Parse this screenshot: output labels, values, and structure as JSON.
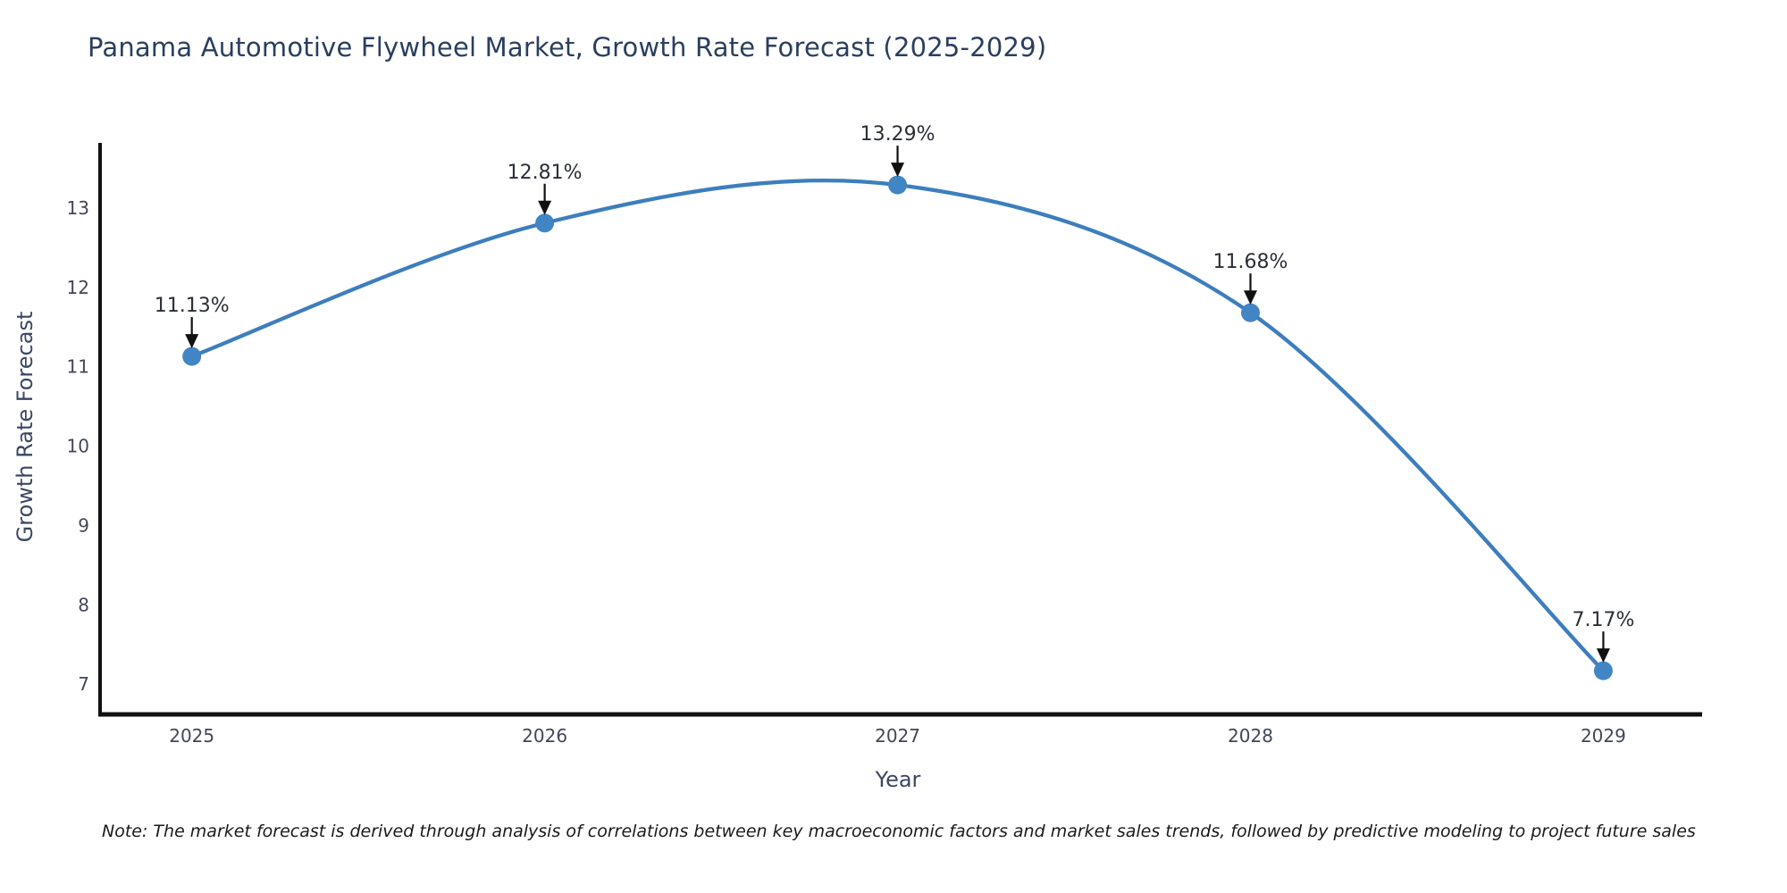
{
  "chart_data": {
    "type": "line",
    "title": "Panama Automotive Flywheel Market, Growth Rate Forecast (2025-2029)",
    "xlabel": "Year",
    "ylabel": "Growth Rate Forecast",
    "x": [
      2025,
      2026,
      2027,
      2028,
      2029
    ],
    "x_tick_labels": [
      "2025",
      "2026",
      "2027",
      "2028",
      "2029"
    ],
    "series": [
      {
        "name": "Growth Rate Forecast",
        "values": [
          11.13,
          12.81,
          13.29,
          11.68,
          7.17
        ],
        "point_labels": [
          "11.13%",
          "12.81%",
          "13.29%",
          "11.68%",
          "7.17%"
        ]
      }
    ],
    "y_ticks": [
      7,
      8,
      9,
      10,
      11,
      12,
      13
    ],
    "y_tick_labels": [
      "7",
      "8",
      "9",
      "10",
      "11",
      "12",
      "13"
    ],
    "xlim": [
      2024.74,
      2029.28
    ],
    "ylim": [
      6.62,
      13.82
    ],
    "grid": false,
    "legend": "none",
    "line_shape": "spline",
    "annotation_style": "label-with-down-arrow",
    "colors": {
      "line": "#3d7ebd",
      "marker": "#4285c4",
      "axis": "#111111",
      "tick_label": "#42465a",
      "title": "#2a3f5f",
      "axis_title": "#3b4663",
      "annotation_text": "#2b2f36",
      "annotation_arrow": "#111111",
      "note_text": "#1a1a1a",
      "background": "#ffffff"
    },
    "note": "Note: The market forecast is derived through analysis of correlations between key macroeconomic factors and market sales trends, followed by predictive modeling to project future sales"
  }
}
